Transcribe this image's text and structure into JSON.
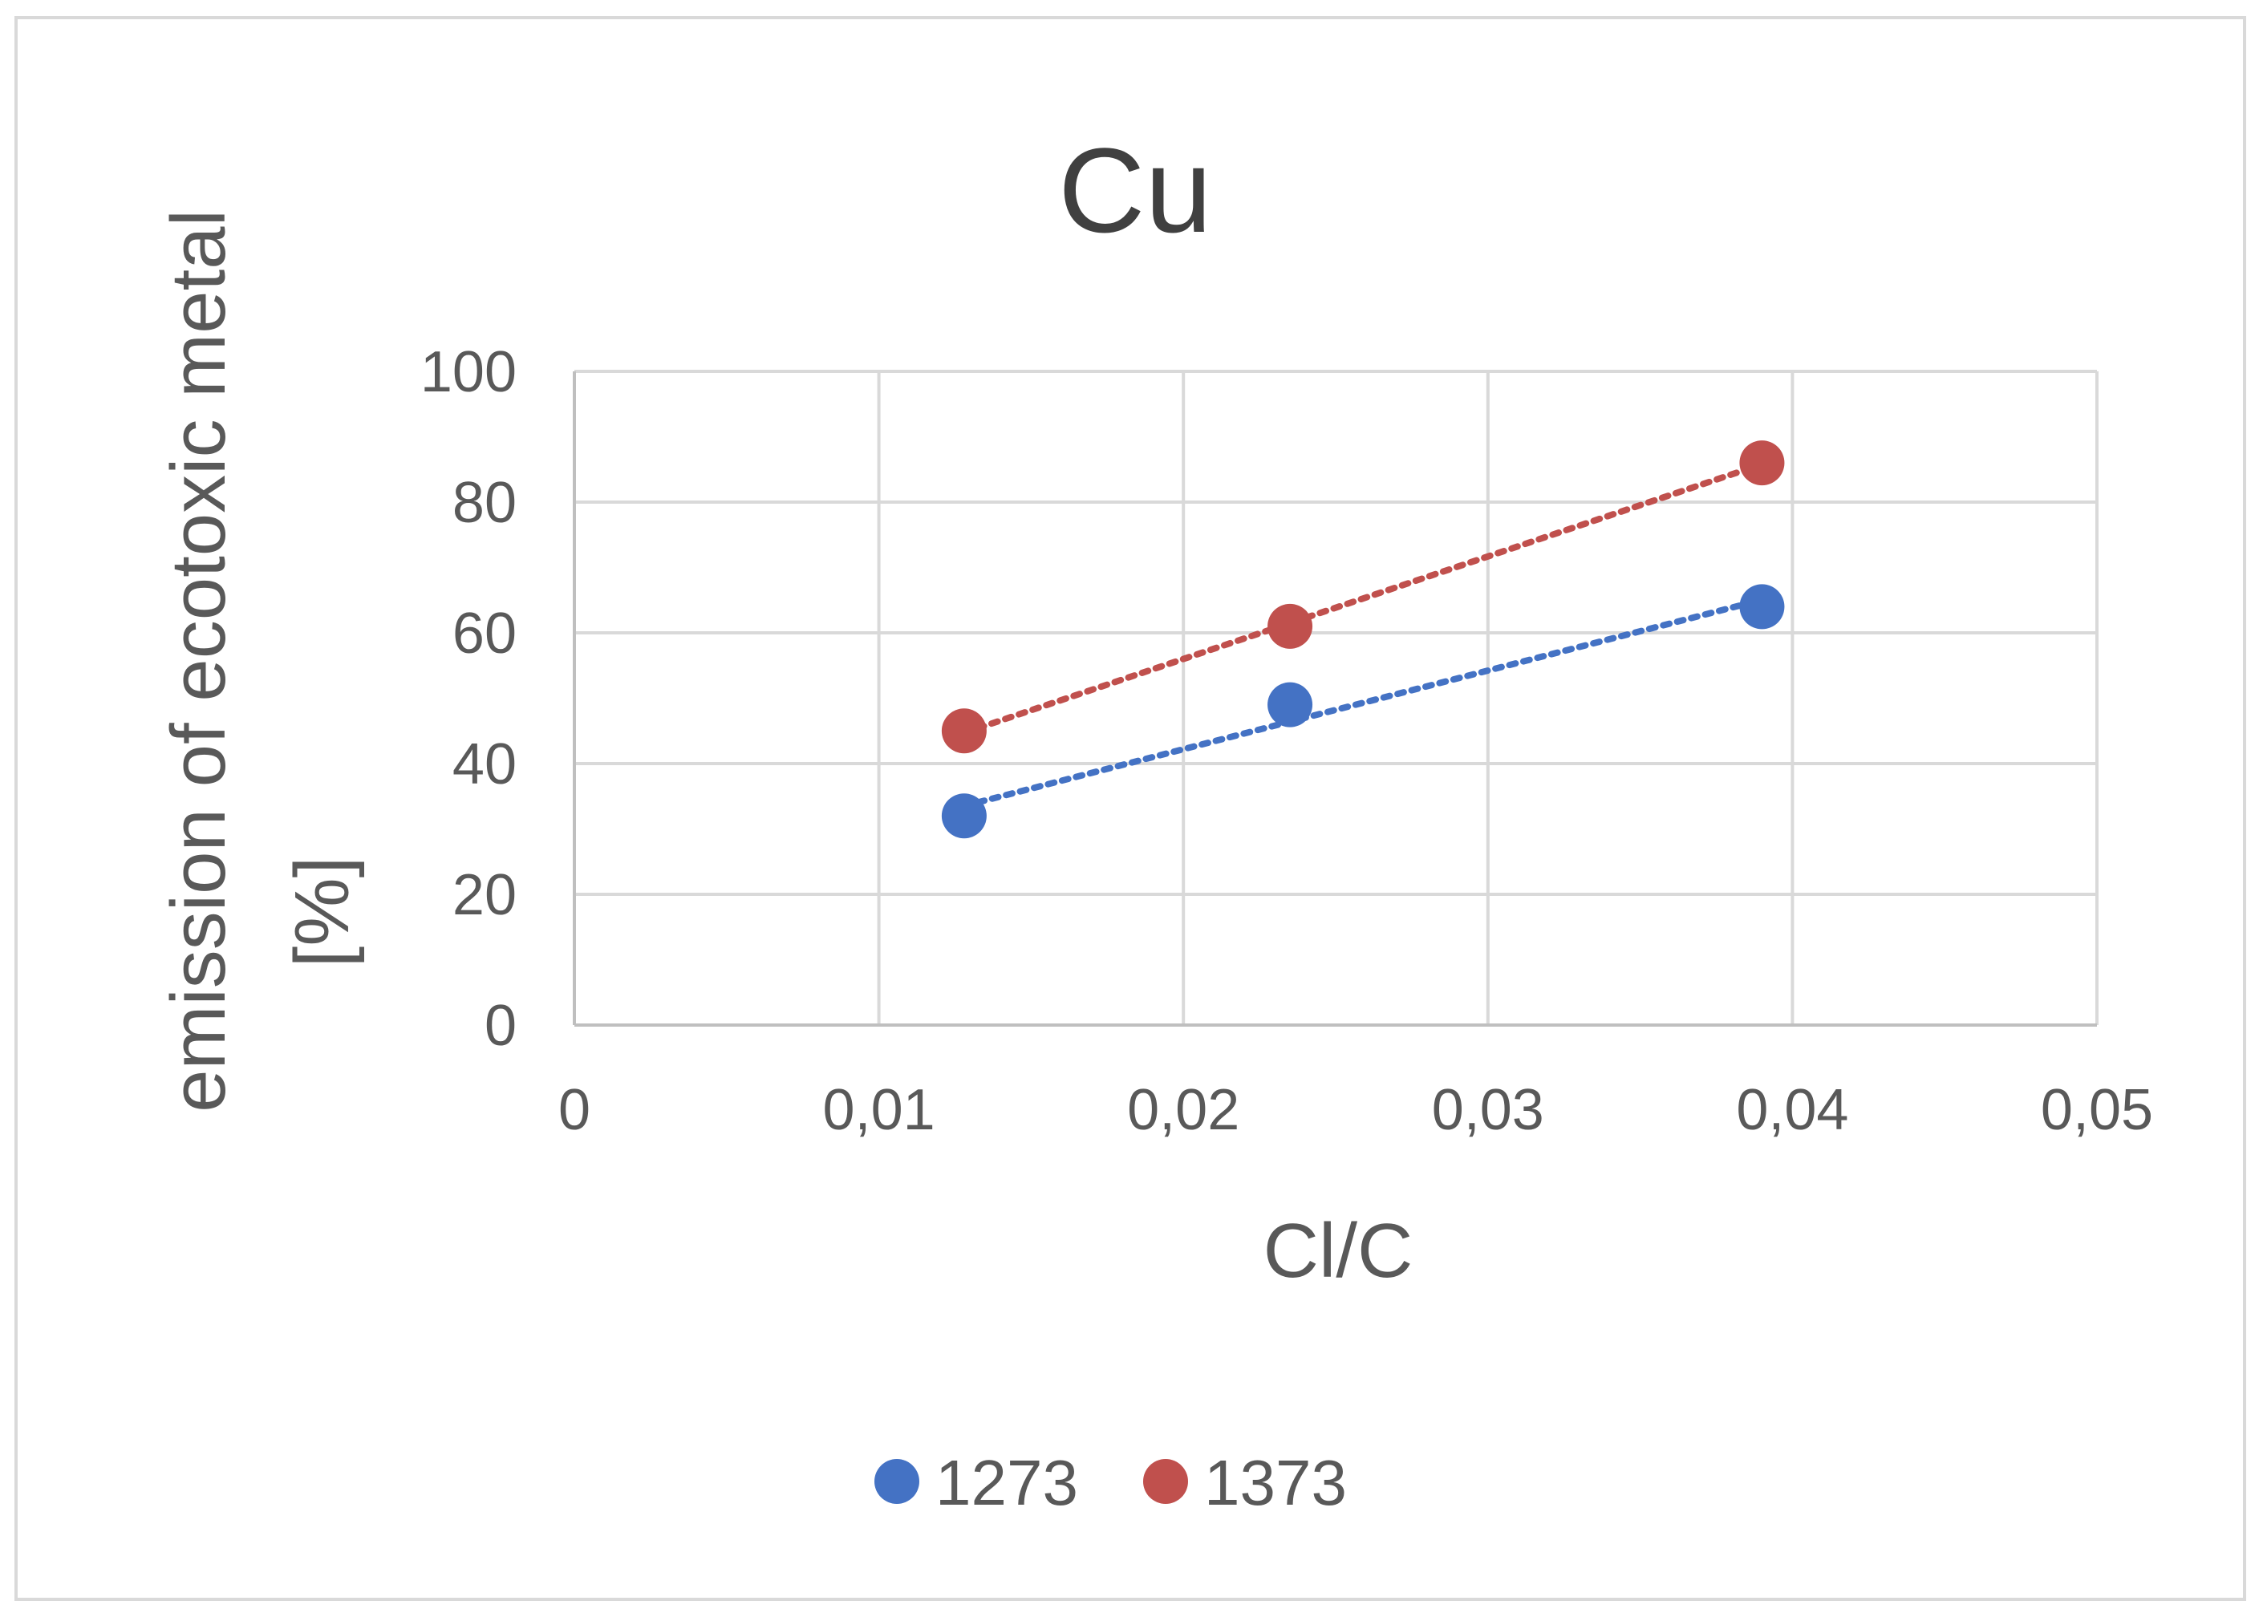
{
  "chart_data": {
    "type": "scatter",
    "title": "Cu",
    "xlabel": "Cl/C",
    "ylabel_lines": [
      "emission of ecotoxic metal",
      "[%]"
    ],
    "xlim": [
      0,
      0.05
    ],
    "ylim": [
      0,
      100
    ],
    "x_ticks": [
      0,
      0.01,
      0.02,
      0.03,
      0.04,
      0.05
    ],
    "x_tick_labels": [
      "0",
      "0,01",
      "0,02",
      "0,03",
      "0,04",
      "0,05"
    ],
    "y_ticks": [
      0,
      20,
      40,
      60,
      80,
      100
    ],
    "y_tick_labels": [
      "0",
      "20",
      "40",
      "60",
      "80",
      "100"
    ],
    "grid": true,
    "legend_position": "bottom",
    "trendline": "linear, dotted",
    "series": [
      {
        "name": "1273",
        "color": "#4472C4",
        "x": [
          0.0128,
          0.0235,
          0.039
        ],
        "y": [
          32,
          49,
          64
        ]
      },
      {
        "name": "1373",
        "color": "#C0504D",
        "x": [
          0.0128,
          0.0235,
          0.039
        ],
        "y": [
          45,
          61,
          86
        ]
      }
    ]
  }
}
